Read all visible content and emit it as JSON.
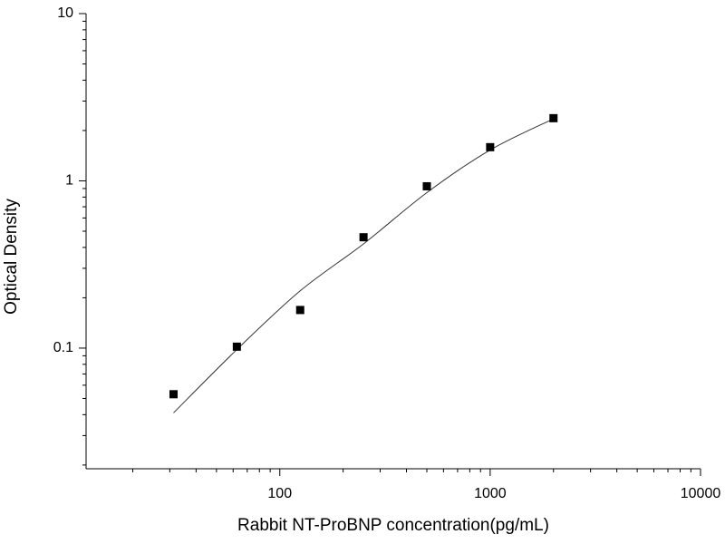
{
  "chart_data": {
    "type": "scatter",
    "x_label": "Rabbit NT-ProBNP concentration(pg/mL)",
    "y_label": "Optical Density",
    "x": [
      31.25,
      62.5,
      125,
      250,
      500,
      1000,
      2000
    ],
    "values": [
      0.053,
      0.102,
      0.169,
      0.46,
      0.928,
      1.59,
      2.37
    ],
    "color": "#000000",
    "fit": {
      "x": [
        31.25,
        62.5,
        125,
        250,
        500,
        1000,
        2000
      ],
      "values": [
        0.041,
        0.098,
        0.22,
        0.42,
        0.85,
        1.53,
        2.35
      ]
    },
    "xlim": [
      12,
      10000
    ],
    "ylim": [
      0.019,
      10
    ],
    "xticks": [
      100,
      1000,
      10000
    ],
    "yticks": [
      0.1,
      1,
      10
    ],
    "xminorticks": [
      20,
      30,
      40,
      50,
      60,
      70,
      80,
      90,
      200,
      300,
      400,
      500,
      600,
      700,
      800,
      900,
      2000,
      3000,
      4000,
      5000,
      6000,
      7000,
      8000,
      9000
    ],
    "yminorticks": [
      0.02,
      0.03,
      0.04,
      0.05,
      0.06,
      0.07,
      0.08,
      0.09,
      0.2,
      0.3,
      0.4,
      0.5,
      0.6,
      0.7,
      0.8,
      0.9,
      2,
      3,
      4,
      5,
      6,
      7,
      8,
      9
    ],
    "log_x": true,
    "log_y": true
  }
}
